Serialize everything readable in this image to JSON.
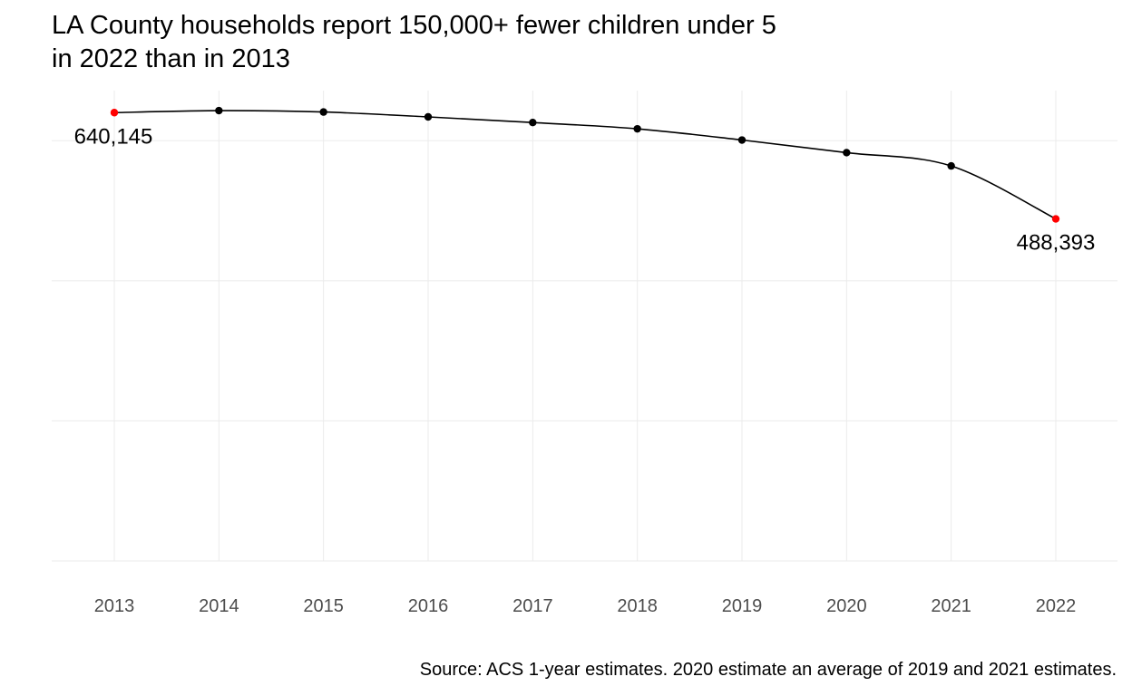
{
  "title_lines": [
    "LA County households report 150,000+ fewer children under 5",
    "in 2022 than in 2013"
  ],
  "caption": "Source: ACS 1-year estimates. 2020 estimate an average of 2019 and 2021 estimates.",
  "colors": {
    "line": "#000000",
    "point": "#000000",
    "highlight": "#ff0000",
    "grid": "#ebebeb",
    "tick_text": "#4d4d4d"
  },
  "chart_data": {
    "type": "line",
    "title": "LA County households report 150,000+ fewer children under 5 in 2022 than in 2013",
    "xlabel": "",
    "ylabel": "",
    "x": [
      2013,
      2014,
      2015,
      2016,
      2017,
      2018,
      2019,
      2020,
      2021,
      2022
    ],
    "series": [
      {
        "values": [
          640145,
          643000,
          641000,
          634000,
          626000,
          617000,
          601000,
          583000,
          564000,
          488393
        ]
      }
    ],
    "labels": [
      {
        "x": 2013,
        "text": "640,145"
      },
      {
        "x": 2022,
        "text": "488,393"
      }
    ],
    "highlight_points": [
      2013,
      2022
    ],
    "ylim": [
      0,
      700000
    ],
    "grid": true,
    "legend": "none"
  }
}
